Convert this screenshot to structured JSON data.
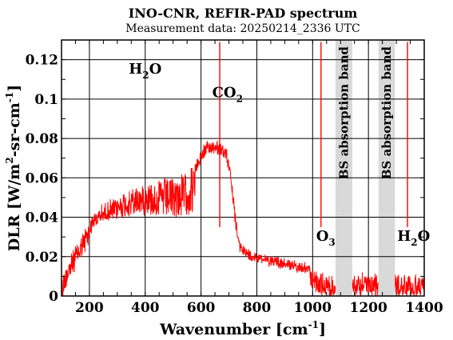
{
  "chart_data": {
    "type": "line",
    "title": "INO-CNR, REFIR-PAD spectrum",
    "subtitle": "Measurement data: 20250214_2336 UTC",
    "xlabel": {
      "main": "Wavenumber [cm",
      "sup": "-1",
      "close": "]"
    },
    "ylabel": {
      "a": "DLR [W/m",
      "sup1": "2",
      "b": "-sr-cm",
      "sup2": "-1",
      "c": "]"
    },
    "xlim": [
      100,
      1400
    ],
    "ylim": [
      0,
      0.13
    ],
    "x_ticks": [
      200,
      400,
      600,
      800,
      1000,
      1200,
      1400
    ],
    "y_ticks": [
      0,
      0.02,
      0.04,
      0.06,
      0.08,
      0.1,
      0.12
    ],
    "x_tick_labels": [
      "200",
      "400",
      "600",
      "800",
      "1000",
      "1200",
      "1400"
    ],
    "y_tick_labels": [
      "0",
      "0.02",
      "0.04",
      "0.06",
      "0.08",
      "0.1",
      "0.12"
    ],
    "grid": true,
    "series": [
      {
        "color": "#ff0000",
        "x": [
          100,
          120,
          150,
          180,
          210,
          240,
          270,
          300,
          320,
          350,
          380,
          400,
          430,
          460,
          490,
          520,
          550,
          570,
          590,
          600,
          610,
          625,
          640,
          655,
          665,
          670,
          680,
          690,
          700,
          710,
          720,
          730,
          740,
          760,
          790,
          820,
          850,
          880,
          910,
          940,
          970,
          1000,
          1020,
          1050,
          1080,
          1150,
          1180,
          1200,
          1230,
          1300,
          1330,
          1360,
          1390,
          1400
        ],
        "y": [
          0.008,
          0.018,
          0.025,
          0.033,
          0.04,
          0.045,
          0.048,
          0.05,
          0.052,
          0.054,
          0.056,
          0.057,
          0.058,
          0.059,
          0.06,
          0.061,
          0.063,
          0.066,
          0.07,
          0.074,
          0.076,
          0.078,
          0.079,
          0.079,
          0.078,
          0.077,
          0.076,
          0.075,
          0.07,
          0.06,
          0.045,
          0.033,
          0.027,
          0.024,
          0.022,
          0.021,
          0.02,
          0.019,
          0.018,
          0.017,
          0.016,
          0.015,
          0.012,
          0.01,
          0.01,
          0.01,
          0.011,
          0.01,
          0.011,
          0.011,
          0.01,
          0.01,
          0.01,
          0.01
        ]
      }
    ],
    "spikes": [
      {
        "x": 667,
        "y": 0.129
      },
      {
        "x": 1030,
        "y": 0.129
      },
      {
        "x": 1340,
        "y": 0.129
      }
    ],
    "shaded_bands": [
      {
        "x0": 1082,
        "x1": 1142,
        "label": "BS absorption band",
        "color": "#d9d9d9"
      },
      {
        "x0": 1236,
        "x1": 1295,
        "label": "BS absorption band",
        "color": "#d9d9d9"
      }
    ],
    "annotations": [
      {
        "x": 400,
        "y": 0.113,
        "base": "H",
        "sub": "2",
        "rest": "O"
      },
      {
        "x": 695,
        "y": 0.101,
        "base": "CO",
        "sub": "2",
        "rest": ""
      },
      {
        "x": 1047,
        "y": 0.028,
        "base": "O",
        "sub": "3",
        "rest": ""
      },
      {
        "x": 1362,
        "y": 0.028,
        "base": "H",
        "sub": "2",
        "rest": "O"
      }
    ]
  }
}
